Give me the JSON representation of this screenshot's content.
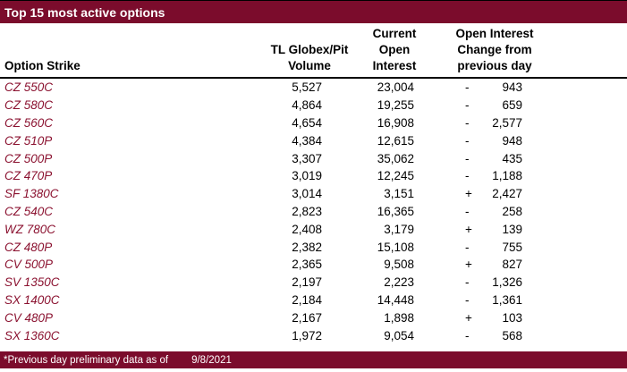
{
  "title": "Top 15 most active options",
  "colors": {
    "maroon_bar": "#7B0C2C",
    "strike_text": "#8B1230",
    "header_rule": "#000000"
  },
  "header": {
    "strike": "Option Strike",
    "volume": "TL Globex/Pit\nVolume",
    "oi": "Current\nOpen\nInterest",
    "change": "Open Interest\nChange from\nprevious day"
  },
  "rows": [
    {
      "strike": "CZ 550C",
      "volume": "5,527",
      "oi": "23,004",
      "sign": "-",
      "change": "943"
    },
    {
      "strike": "CZ 580C",
      "volume": "4,864",
      "oi": "19,255",
      "sign": "-",
      "change": "659"
    },
    {
      "strike": "CZ 560C",
      "volume": "4,654",
      "oi": "16,908",
      "sign": "-",
      "change": "2,577"
    },
    {
      "strike": "CZ 510P",
      "volume": "4,384",
      "oi": "12,615",
      "sign": "-",
      "change": "948"
    },
    {
      "strike": "CZ 500P",
      "volume": "3,307",
      "oi": "35,062",
      "sign": "-",
      "change": "435"
    },
    {
      "strike": "CZ 470P",
      "volume": "3,019",
      "oi": "12,245",
      "sign": "-",
      "change": "1,188"
    },
    {
      "strike": "SF 1380C",
      "volume": "3,014",
      "oi": "3,151",
      "sign": "+",
      "change": "2,427"
    },
    {
      "strike": "CZ 540C",
      "volume": "2,823",
      "oi": "16,365",
      "sign": "-",
      "change": "258"
    },
    {
      "strike": "WZ 780C",
      "volume": "2,408",
      "oi": "3,179",
      "sign": "+",
      "change": "139"
    },
    {
      "strike": "CZ 480P",
      "volume": "2,382",
      "oi": "15,108",
      "sign": "-",
      "change": "755"
    },
    {
      "strike": "CV 500P",
      "volume": "2,365",
      "oi": "9,508",
      "sign": "+",
      "change": "827"
    },
    {
      "strike": "SV 1350C",
      "volume": "2,197",
      "oi": "2,223",
      "sign": "-",
      "change": "1,326"
    },
    {
      "strike": "SX 1400C",
      "volume": "2,184",
      "oi": "14,448",
      "sign": "-",
      "change": "1,361"
    },
    {
      "strike": "CV 480P",
      "volume": "2,167",
      "oi": "1,898",
      "sign": "+",
      "change": "103"
    },
    {
      "strike": "SX 1360C",
      "volume": "1,972",
      "oi": "9,054",
      "sign": "-",
      "change": "568"
    }
  ],
  "footer": {
    "note": "*Previous day preliminary data as of",
    "date": "9/8/2021"
  },
  "chart_data": {
    "type": "table",
    "title": "Top 15 most active options",
    "columns": [
      "Option Strike",
      "TL Globex/Pit Volume",
      "Current Open Interest",
      "Open Interest Change from previous day"
    ],
    "rows": [
      [
        "CZ 550C",
        5527,
        23004,
        -943
      ],
      [
        "CZ 580C",
        4864,
        19255,
        -659
      ],
      [
        "CZ 560C",
        4654,
        16908,
        -2577
      ],
      [
        "CZ 510P",
        4384,
        12615,
        -948
      ],
      [
        "CZ 500P",
        3307,
        35062,
        -435
      ],
      [
        "CZ 470P",
        3019,
        12245,
        -1188
      ],
      [
        "SF 1380C",
        3014,
        3151,
        2427
      ],
      [
        "CZ 540C",
        2823,
        16365,
        -258
      ],
      [
        "WZ 780C",
        2408,
        3179,
        139
      ],
      [
        "CZ 480P",
        2382,
        15108,
        -755
      ],
      [
        "CV 500P",
        2365,
        9508,
        827
      ],
      [
        "SV 1350C",
        2197,
        2223,
        -1326
      ],
      [
        "SX 1400C",
        2184,
        14448,
        -1361
      ],
      [
        "CV 480P",
        2167,
        1898,
        103
      ],
      [
        "SX 1360C",
        1972,
        9054,
        -568
      ]
    ],
    "footnote": "*Previous day preliminary data as of 9/8/2021"
  }
}
